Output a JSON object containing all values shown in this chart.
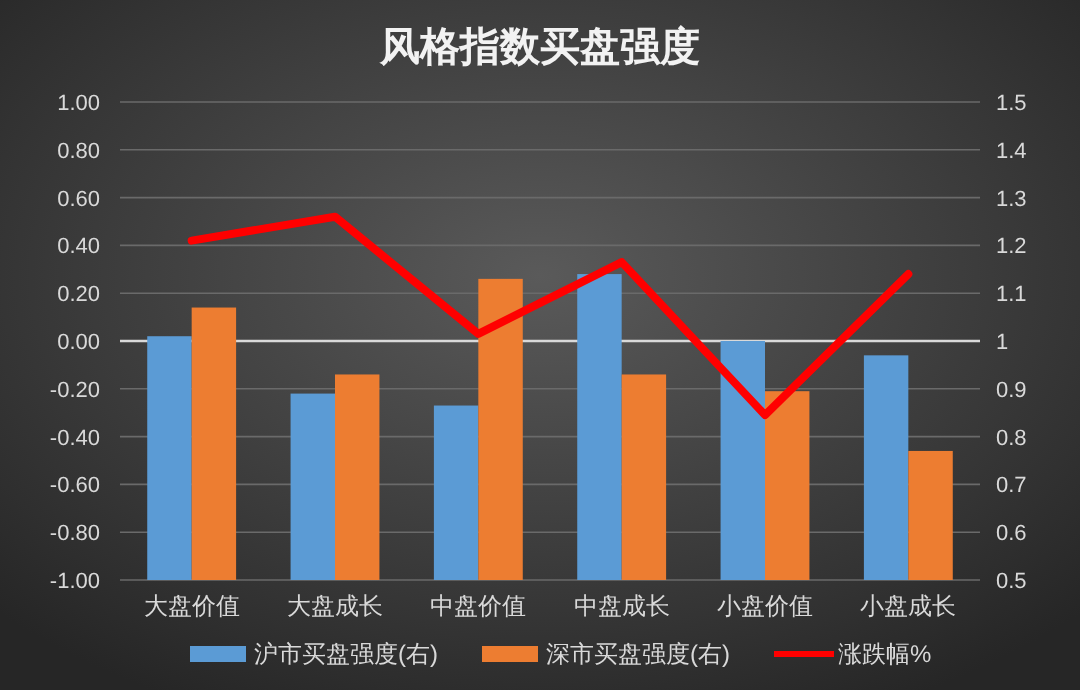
{
  "chart_data": {
    "type": "bar",
    "title": "风格指数买盘强度",
    "categories": [
      "大盘价值",
      "大盘成长",
      "中盘价值",
      "中盘成长",
      "小盘价值",
      "小盘成长"
    ],
    "series": [
      {
        "name": "沪市买盘强度(右)",
        "color": "#5b9bd5",
        "axis": "y2",
        "values": [
          1.01,
          0.89,
          0.865,
          1.14,
          1.0,
          0.97
        ]
      },
      {
        "name": "深市买盘强度(右)",
        "color": "#ed7d31",
        "axis": "y2",
        "values": [
          1.07,
          0.93,
          1.13,
          0.93,
          0.895,
          0.77
        ]
      },
      {
        "name": "涨跌幅%",
        "type": "line",
        "color": "#ff0000",
        "values": [
          0.42,
          0.52,
          0.03,
          0.33,
          -0.31,
          0.28
        ]
      }
    ],
    "ylim": [
      -1,
      1
    ],
    "yticks": [
      {
        "value": -1,
        "label": "-1.00"
      },
      {
        "value": -0.8,
        "label": "-0.80"
      },
      {
        "value": -0.6,
        "label": "-0.60"
      },
      {
        "value": -0.4,
        "label": "-0.40"
      },
      {
        "value": -0.2,
        "label": "-0.20"
      },
      {
        "value": 0,
        "label": "0.00"
      },
      {
        "value": 0.2,
        "label": "0.20"
      },
      {
        "value": 0.4,
        "label": "0.40"
      },
      {
        "value": 0.6,
        "label": "0.60"
      },
      {
        "value": 0.8,
        "label": "0.80"
      },
      {
        "value": 1,
        "label": "1.00"
      }
    ],
    "y2lim": [
      0.5,
      1.5
    ],
    "y2ticks": [
      0.5,
      0.6,
      0.7,
      0.8,
      0.9,
      1,
      1.1,
      1.2,
      1.3,
      1.4,
      1.5
    ],
    "ref_lines": [
      {
        "axis": "y",
        "value": 0,
        "color": "#d9d9d9"
      }
    ],
    "grid": "y",
    "legend": "bottom"
  }
}
